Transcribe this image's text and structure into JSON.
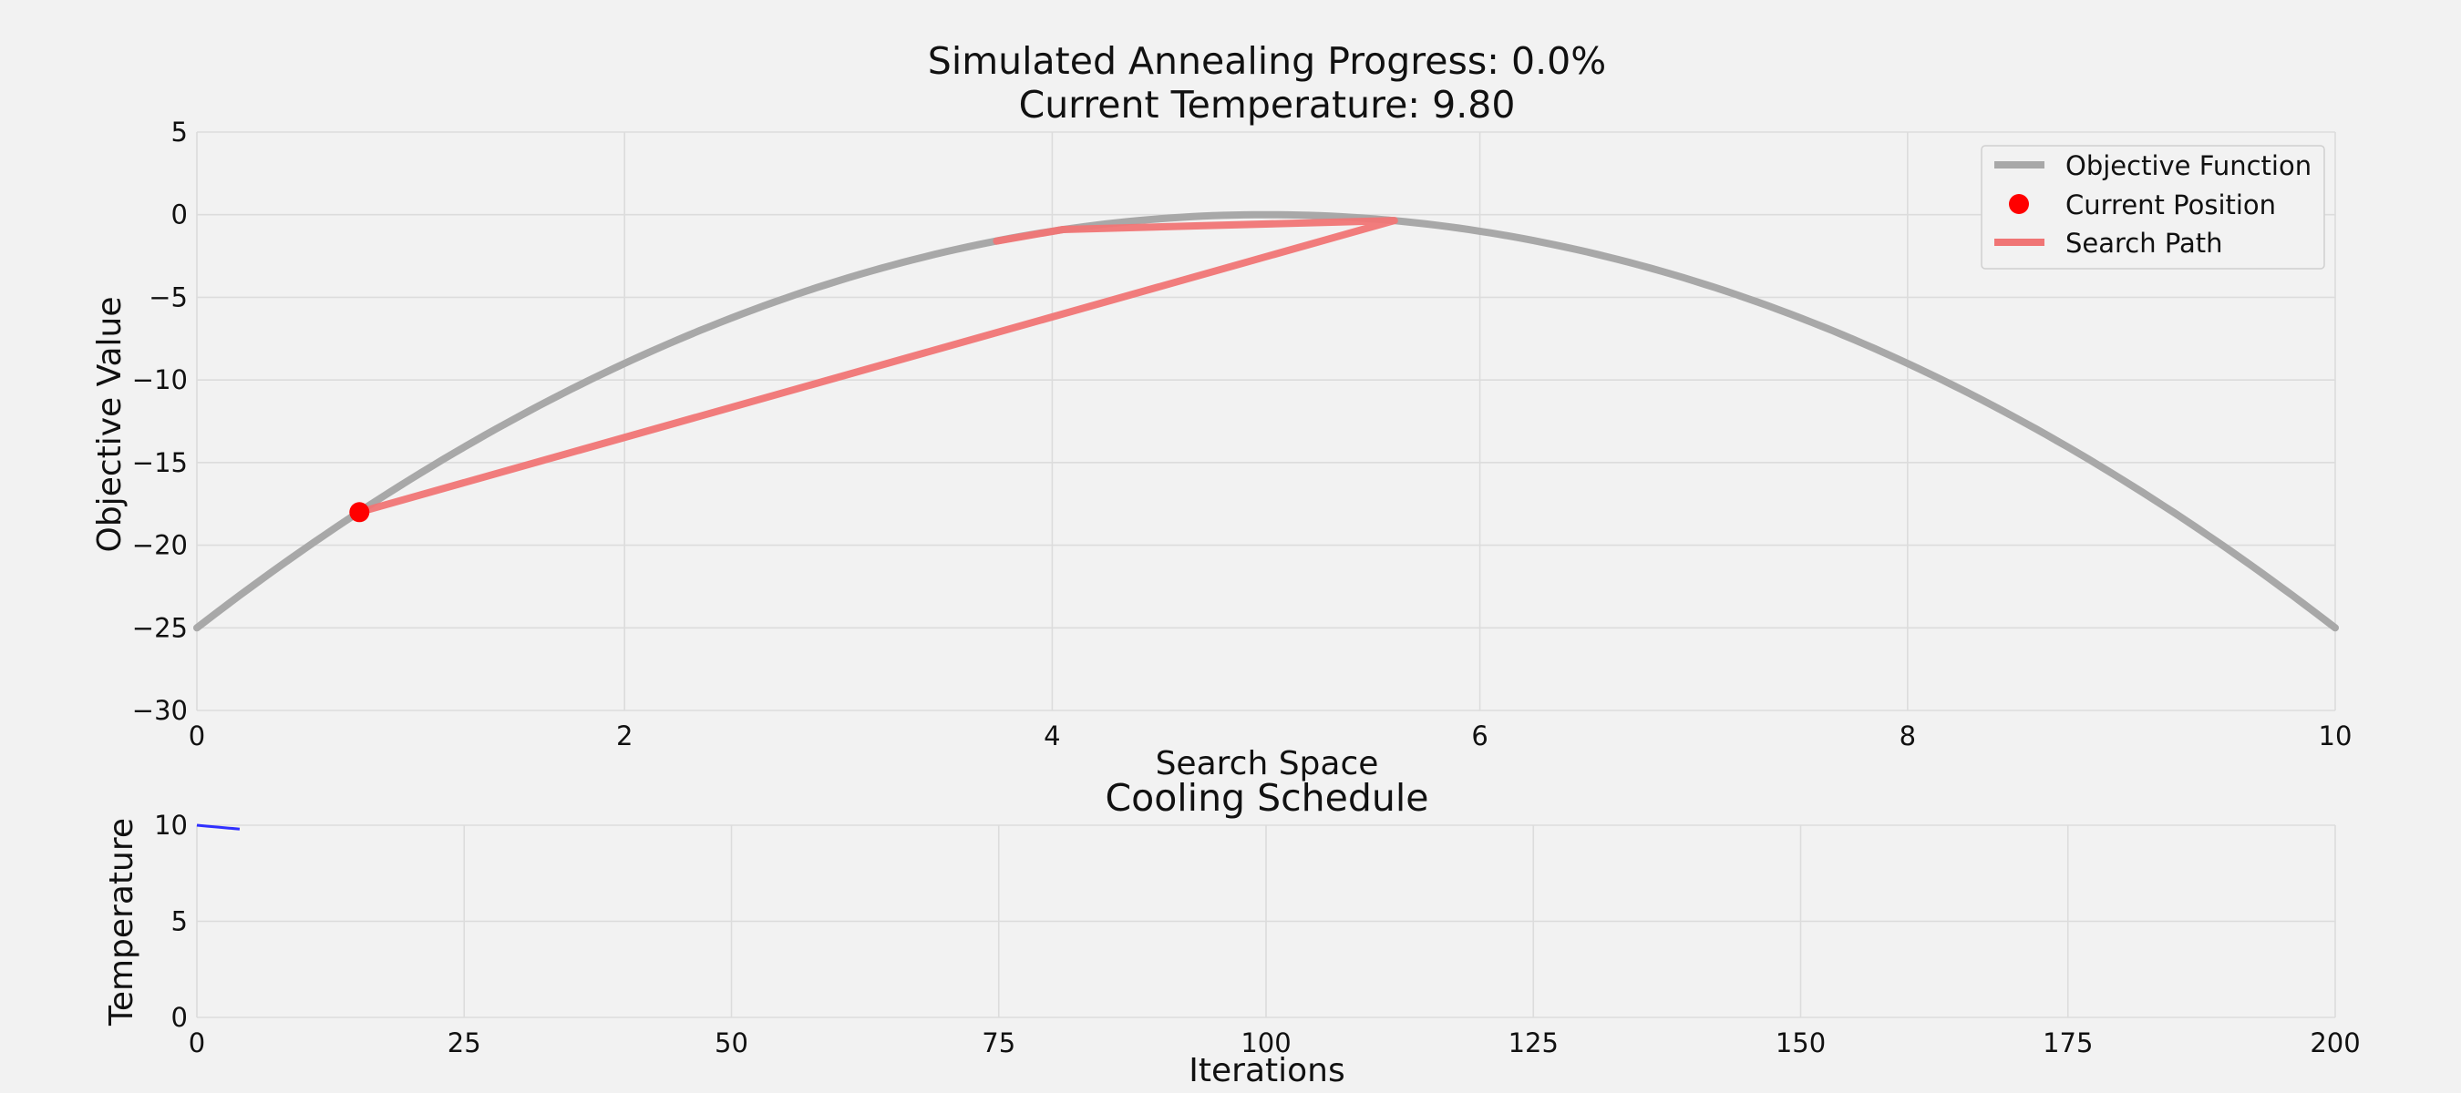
{
  "figure": {
    "background": "#f2f2f2"
  },
  "chart_data": [
    {
      "type": "line",
      "title_line1": "Simulated Annealing Progress: 0.0%",
      "title_line2": "Current Temperature: 9.80",
      "xlabel": "Search Space",
      "ylabel": "Objective Value",
      "xlim": [
        0,
        10
      ],
      "ylim": [
        -30,
        5
      ],
      "xticks": [
        0,
        2,
        4,
        6,
        8,
        10
      ],
      "yticks": [
        5,
        0,
        -5,
        -10,
        -15,
        -20,
        -25,
        -30
      ],
      "x_tick_labels": [
        "0",
        "2",
        "4",
        "6",
        "8",
        "10"
      ],
      "y_tick_labels": [
        "5",
        "0",
        "−5",
        "−10",
        "−15",
        "−20",
        "−25",
        "−30"
      ],
      "grid": true,
      "legend_position": "top-right",
      "series": [
        {
          "name": "Objective Function",
          "kind": "line",
          "function": "-(x-5)^2",
          "color": "#a8a8a8"
        },
        {
          "name": "Current Position",
          "kind": "point",
          "x": 0.76,
          "y": -18.0,
          "color": "#ff0000"
        },
        {
          "name": "Search Path",
          "kind": "line",
          "color": "#f07575",
          "x": [
            3.74,
            4.05,
            5.6,
            0.76
          ],
          "y": [
            -1.6,
            -0.9,
            -0.35,
            -18.0
          ]
        }
      ]
    },
    {
      "type": "line",
      "title": "Cooling Schedule",
      "xlabel": "Iterations",
      "ylabel": "Temperature",
      "xlim": [
        0,
        200
      ],
      "ylim": [
        0,
        10
      ],
      "xticks": [
        0,
        25,
        50,
        75,
        100,
        125,
        150,
        175,
        200
      ],
      "yticks": [
        10,
        5,
        0
      ],
      "x_tick_labels": [
        "0",
        "25",
        "50",
        "75",
        "100",
        "125",
        "150",
        "175",
        "200"
      ],
      "y_tick_labels": [
        "10",
        "5",
        "0"
      ],
      "grid": true,
      "series": [
        {
          "kind": "line",
          "color": "#3030ff",
          "x": [
            0,
            1,
            2,
            3,
            4
          ],
          "y": [
            10.0,
            9.95,
            9.9,
            9.85,
            9.8
          ]
        }
      ]
    }
  ]
}
